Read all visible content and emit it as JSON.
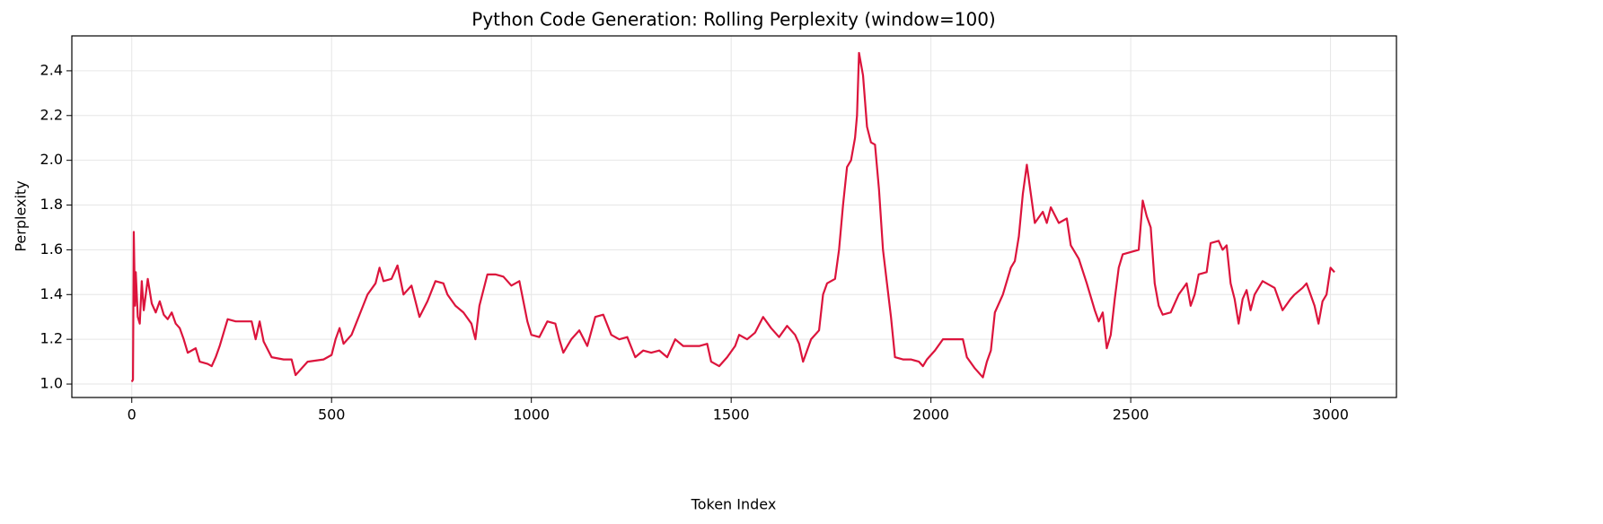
{
  "chart_data": {
    "type": "line",
    "title": "Python Code Generation: Rolling Perplexity (window=100)",
    "x_label": "Token Index",
    "y_label": "Perplexity",
    "color": "#dc143c",
    "grid": true,
    "xlim": [
      -150,
      3165
    ],
    "ylim": [
      0.94,
      2.556
    ],
    "xticks": [
      0,
      500,
      1000,
      1500,
      2000,
      2500,
      3000
    ],
    "yticks": [
      {
        "value": 1,
        "label": "1.0"
      },
      1.2,
      1.4,
      1.6,
      1.8,
      {
        "value": 2,
        "label": "2.0"
      },
      2.2,
      2.4
    ],
    "x": [
      0,
      3,
      5,
      8,
      10,
      15,
      20,
      25,
      30,
      40,
      50,
      60,
      70,
      80,
      90,
      100,
      110,
      120,
      130,
      140,
      160,
      170,
      190,
      200,
      210,
      220,
      230,
      240,
      260,
      300,
      310,
      320,
      330,
      350,
      380,
      400,
      410,
      420,
      440,
      480,
      500,
      510,
      520,
      530,
      550,
      570,
      590,
      610,
      620,
      630,
      650,
      665,
      680,
      700,
      720,
      740,
      760,
      780,
      790,
      810,
      830,
      850,
      860,
      870,
      890,
      910,
      930,
      950,
      970,
      980,
      990,
      1000,
      1020,
      1040,
      1060,
      1070,
      1080,
      1100,
      1120,
      1140,
      1160,
      1180,
      1200,
      1220,
      1240,
      1260,
      1280,
      1300,
      1320,
      1340,
      1360,
      1380,
      1420,
      1440,
      1450,
      1470,
      1490,
      1510,
      1520,
      1540,
      1560,
      1580,
      1600,
      1620,
      1640,
      1660,
      1670,
      1680,
      1690,
      1700,
      1720,
      1730,
      1740,
      1760,
      1770,
      1780,
      1790,
      1800,
      1810,
      1815,
      1820,
      1830,
      1840,
      1850,
      1860,
      1870,
      1880,
      1890,
      1900,
      1910,
      1930,
      1950,
      1970,
      1980,
      1990,
      2010,
      2030,
      2050,
      2080,
      2090,
      2110,
      2130,
      2140,
      2150,
      2160,
      2180,
      2200,
      2210,
      2220,
      2230,
      2240,
      2250,
      2260,
      2280,
      2290,
      2300,
      2320,
      2340,
      2350,
      2370,
      2390,
      2410,
      2420,
      2430,
      2440,
      2450,
      2460,
      2470,
      2480,
      2500,
      2520,
      2530,
      2540,
      2550,
      2560,
      2570,
      2580,
      2600,
      2620,
      2640,
      2650,
      2660,
      2670,
      2690,
      2700,
      2720,
      2730,
      2740,
      2750,
      2760,
      2770,
      2780,
      2790,
      2800,
      2810,
      2830,
      2840,
      2860,
      2870,
      2880,
      2900,
      2910,
      2930,
      2940,
      2950,
      2960,
      2970,
      2980,
      2990,
      3000,
      3010
    ],
    "values": [
      1.01,
      1.02,
      1.68,
      1.35,
      1.5,
      1.3,
      1.27,
      1.46,
      1.33,
      1.47,
      1.36,
      1.32,
      1.37,
      1.31,
      1.29,
      1.32,
      1.27,
      1.25,
      1.2,
      1.14,
      1.16,
      1.1,
      1.09,
      1.08,
      1.12,
      1.17,
      1.23,
      1.29,
      1.28,
      1.28,
      1.2,
      1.28,
      1.19,
      1.12,
      1.11,
      1.11,
      1.04,
      1.06,
      1.1,
      1.11,
      1.13,
      1.2,
      1.25,
      1.18,
      1.22,
      1.31,
      1.4,
      1.45,
      1.52,
      1.46,
      1.47,
      1.53,
      1.4,
      1.44,
      1.3,
      1.37,
      1.46,
      1.45,
      1.4,
      1.35,
      1.32,
      1.27,
      1.2,
      1.35,
      1.49,
      1.49,
      1.48,
      1.44,
      1.46,
      1.37,
      1.28,
      1.22,
      1.21,
      1.28,
      1.27,
      1.2,
      1.14,
      1.2,
      1.24,
      1.17,
      1.3,
      1.31,
      1.22,
      1.2,
      1.21,
      1.12,
      1.15,
      1.14,
      1.15,
      1.12,
      1.2,
      1.17,
      1.17,
      1.18,
      1.1,
      1.08,
      1.12,
      1.17,
      1.22,
      1.2,
      1.23,
      1.3,
      1.25,
      1.21,
      1.26,
      1.22,
      1.18,
      1.1,
      1.15,
      1.2,
      1.24,
      1.4,
      1.45,
      1.47,
      1.6,
      1.8,
      1.97,
      2.0,
      2.1,
      2.2,
      2.48,
      2.38,
      2.15,
      2.08,
      2.07,
      1.87,
      1.6,
      1.45,
      1.3,
      1.12,
      1.11,
      1.11,
      1.1,
      1.08,
      1.11,
      1.15,
      1.2,
      1.2,
      1.2,
      1.12,
      1.07,
      1.03,
      1.1,
      1.15,
      1.32,
      1.4,
      1.52,
      1.55,
      1.66,
      1.85,
      1.98,
      1.85,
      1.72,
      1.77,
      1.72,
      1.79,
      1.72,
      1.74,
      1.62,
      1.56,
      1.45,
      1.33,
      1.28,
      1.32,
      1.16,
      1.22,
      1.38,
      1.52,
      1.58,
      1.59,
      1.6,
      1.82,
      1.75,
      1.7,
      1.45,
      1.35,
      1.31,
      1.32,
      1.4,
      1.45,
      1.35,
      1.4,
      1.49,
      1.5,
      1.63,
      1.64,
      1.6,
      1.62,
      1.45,
      1.38,
      1.27,
      1.38,
      1.42,
      1.33,
      1.4,
      1.46,
      1.45,
      1.43,
      1.38,
      1.33,
      1.38,
      1.4,
      1.43,
      1.45,
      1.4,
      1.35,
      1.27,
      1.37,
      1.4,
      1.52,
      1.5
    ]
  }
}
